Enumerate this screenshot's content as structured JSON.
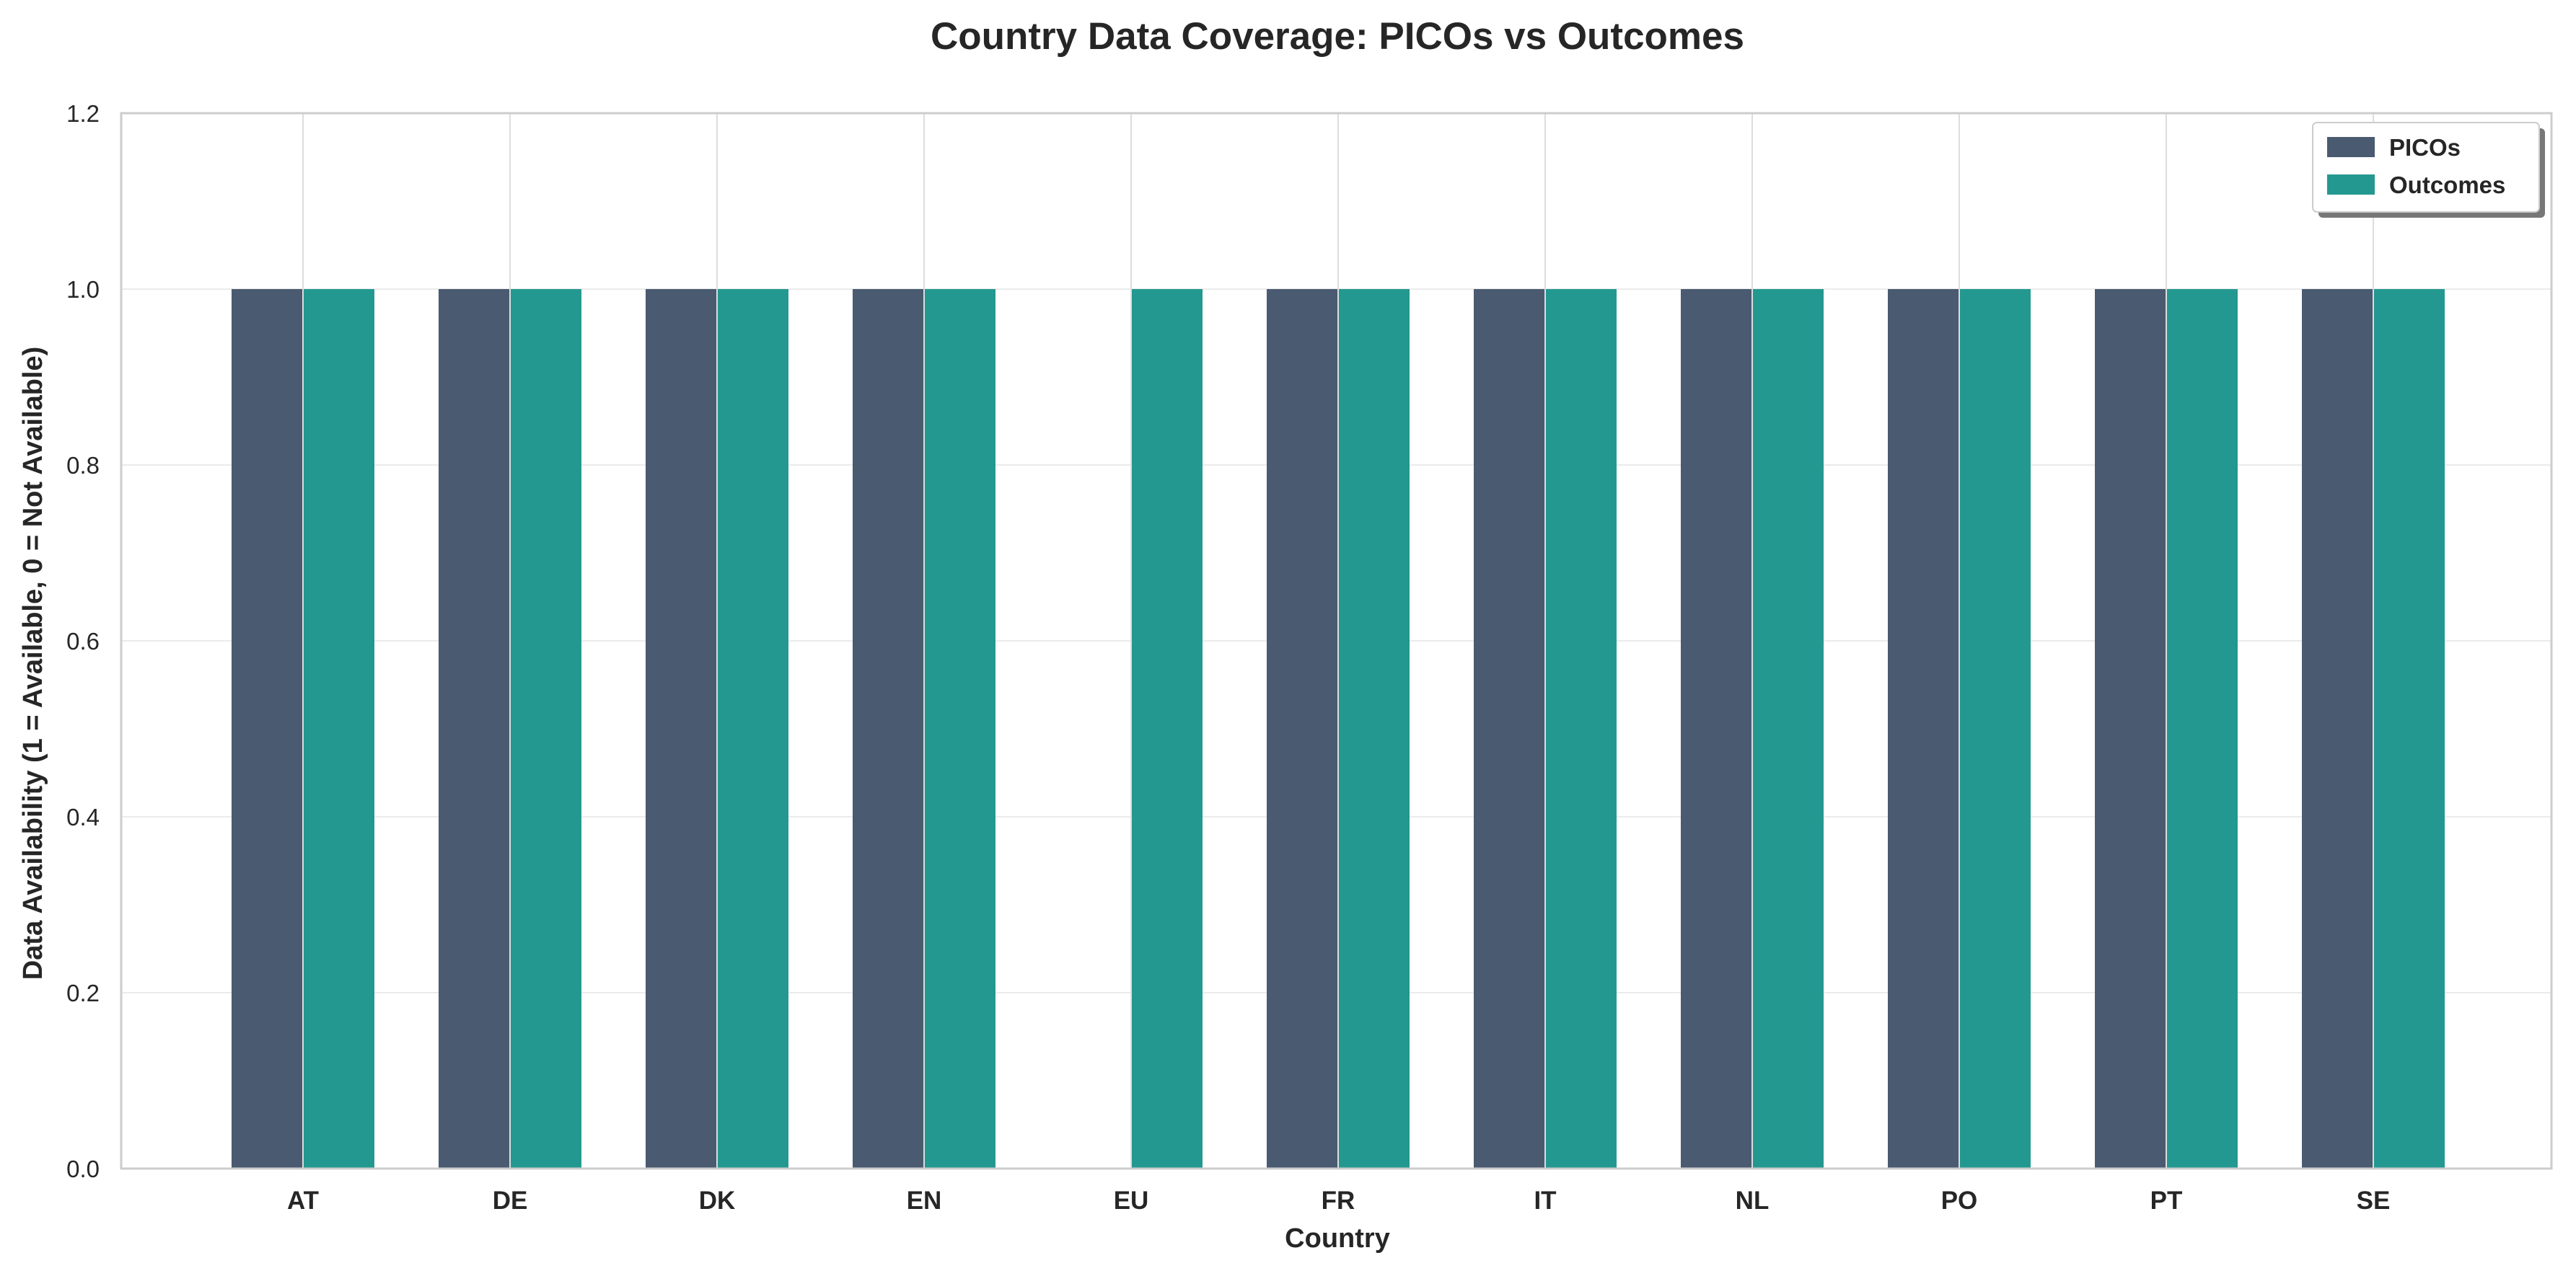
{
  "chart_data": {
    "type": "bar",
    "title": "Country Data Coverage: PICOs vs Outcomes",
    "xlabel": "Country",
    "ylabel": "Data Availability (1 = Available, 0 = Not Available)",
    "categories": [
      "AT",
      "DE",
      "DK",
      "EN",
      "EU",
      "FR",
      "IT",
      "NL",
      "PO",
      "PT",
      "SE"
    ],
    "series": [
      {
        "name": "PICOs",
        "color": "#4a5a70",
        "values": [
          1,
          1,
          1,
          1,
          0,
          1,
          1,
          1,
          1,
          1,
          1
        ]
      },
      {
        "name": "Outcomes",
        "color": "#239890",
        "values": [
          1,
          1,
          1,
          1,
          1,
          1,
          1,
          1,
          1,
          1,
          1
        ]
      }
    ],
    "ylim": [
      0,
      1.2
    ],
    "yticks": [
      "0.0",
      "0.2",
      "0.4",
      "0.6",
      "0.8",
      "1.0",
      "1.2"
    ],
    "grid": true,
    "legend_position": "top-right"
  }
}
